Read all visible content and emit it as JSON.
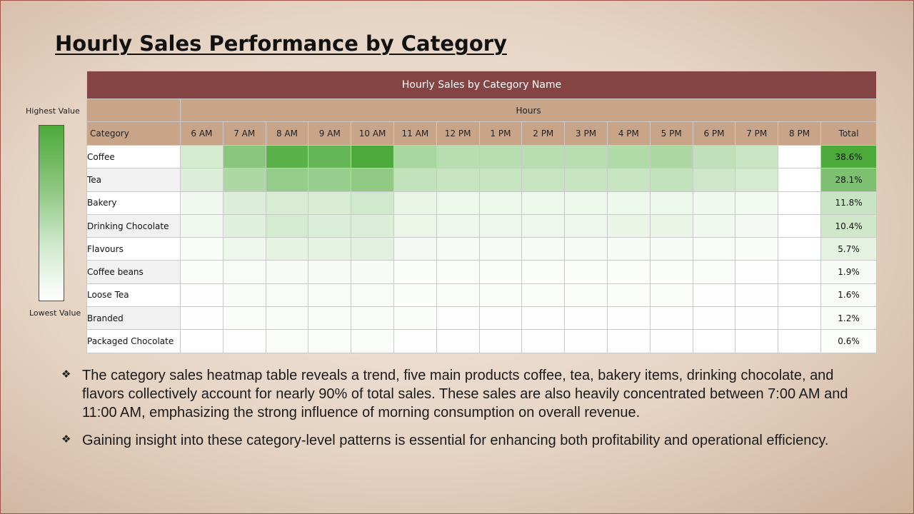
{
  "page": {
    "title": "Hourly Sales Performance by Category"
  },
  "legend": {
    "high_label": "Highest Value",
    "low_label": "Lowest Value"
  },
  "chart_data": {
    "type": "heatmap",
    "title": "Hourly Sales by Category Name",
    "column_group_label": "Hours",
    "row_header": "Category",
    "total_header": "Total",
    "hours": [
      "6 AM",
      "7 AM",
      "8 AM",
      "9 AM",
      "10 AM",
      "11 AM",
      "12 PM",
      "1 PM",
      "2 PM",
      "3 PM",
      "4 PM",
      "5 PM",
      "6 PM",
      "7 PM",
      "8 PM"
    ],
    "categories": [
      "Coffee",
      "Tea",
      "Bakery",
      "Drinking Chocolate",
      "Flavours",
      "Coffee beans",
      "Loose Tea",
      "Branded",
      "Packaged Chocolate"
    ],
    "values": [
      [
        0.24,
        0.66,
        0.92,
        0.86,
        1.0,
        0.48,
        0.4,
        0.4,
        0.4,
        0.4,
        0.44,
        0.46,
        0.36,
        0.3,
        0.0
      ],
      [
        0.2,
        0.46,
        0.6,
        0.58,
        0.62,
        0.34,
        0.32,
        0.32,
        0.32,
        0.32,
        0.32,
        0.34,
        0.28,
        0.24,
        0.0
      ],
      [
        0.08,
        0.2,
        0.22,
        0.22,
        0.26,
        0.12,
        0.1,
        0.1,
        0.1,
        0.1,
        0.1,
        0.1,
        0.08,
        0.07,
        0.0
      ],
      [
        0.08,
        0.18,
        0.24,
        0.2,
        0.2,
        0.11,
        0.1,
        0.1,
        0.1,
        0.1,
        0.12,
        0.12,
        0.08,
        0.06,
        0.0
      ],
      [
        0.04,
        0.1,
        0.14,
        0.14,
        0.16,
        0.06,
        0.05,
        0.05,
        0.05,
        0.05,
        0.05,
        0.05,
        0.04,
        0.03,
        0.0
      ],
      [
        0.02,
        0.04,
        0.05,
        0.05,
        0.05,
        0.02,
        0.02,
        0.02,
        0.02,
        0.02,
        0.02,
        0.02,
        0.02,
        0.01,
        0.0
      ],
      [
        0.01,
        0.03,
        0.04,
        0.04,
        0.04,
        0.02,
        0.02,
        0.02,
        0.02,
        0.02,
        0.02,
        0.02,
        0.01,
        0.01,
        0.0
      ],
      [
        0.01,
        0.02,
        0.03,
        0.03,
        0.03,
        0.02,
        0.01,
        0.01,
        0.01,
        0.01,
        0.01,
        0.01,
        0.01,
        0.01,
        0.0
      ],
      [
        0.0,
        0.01,
        0.02,
        0.02,
        0.02,
        0.01,
        0.01,
        0.01,
        0.01,
        0.01,
        0.01,
        0.01,
        0.0,
        0.0,
        0.0
      ]
    ],
    "totals": [
      "38.6%",
      "28.1%",
      "11.8%",
      "10.4%",
      "5.7%",
      "1.9%",
      "1.6%",
      "1.2%",
      "0.6%"
    ],
    "total_values": [
      38.6,
      28.1,
      11.8,
      10.4,
      5.7,
      1.9,
      1.6,
      1.2,
      0.6
    ],
    "colors": {
      "high": "#4caa3a",
      "low": "#ffffff",
      "header_bg": "#c8a589",
      "title_bg": "#844444"
    }
  },
  "bullets": [
    "The category sales heatmap table reveals a trend, five main products coffee, tea, bakery items, drinking chocolate, and flavors collectively account for nearly 90% of total sales. These sales are also heavily concentrated between 7:00 AM and 11:00 AM, emphasizing the strong influence of morning consumption on overall revenue.",
    "Gaining insight into these category-level patterns is essential for enhancing both profitability and operational efficiency."
  ]
}
